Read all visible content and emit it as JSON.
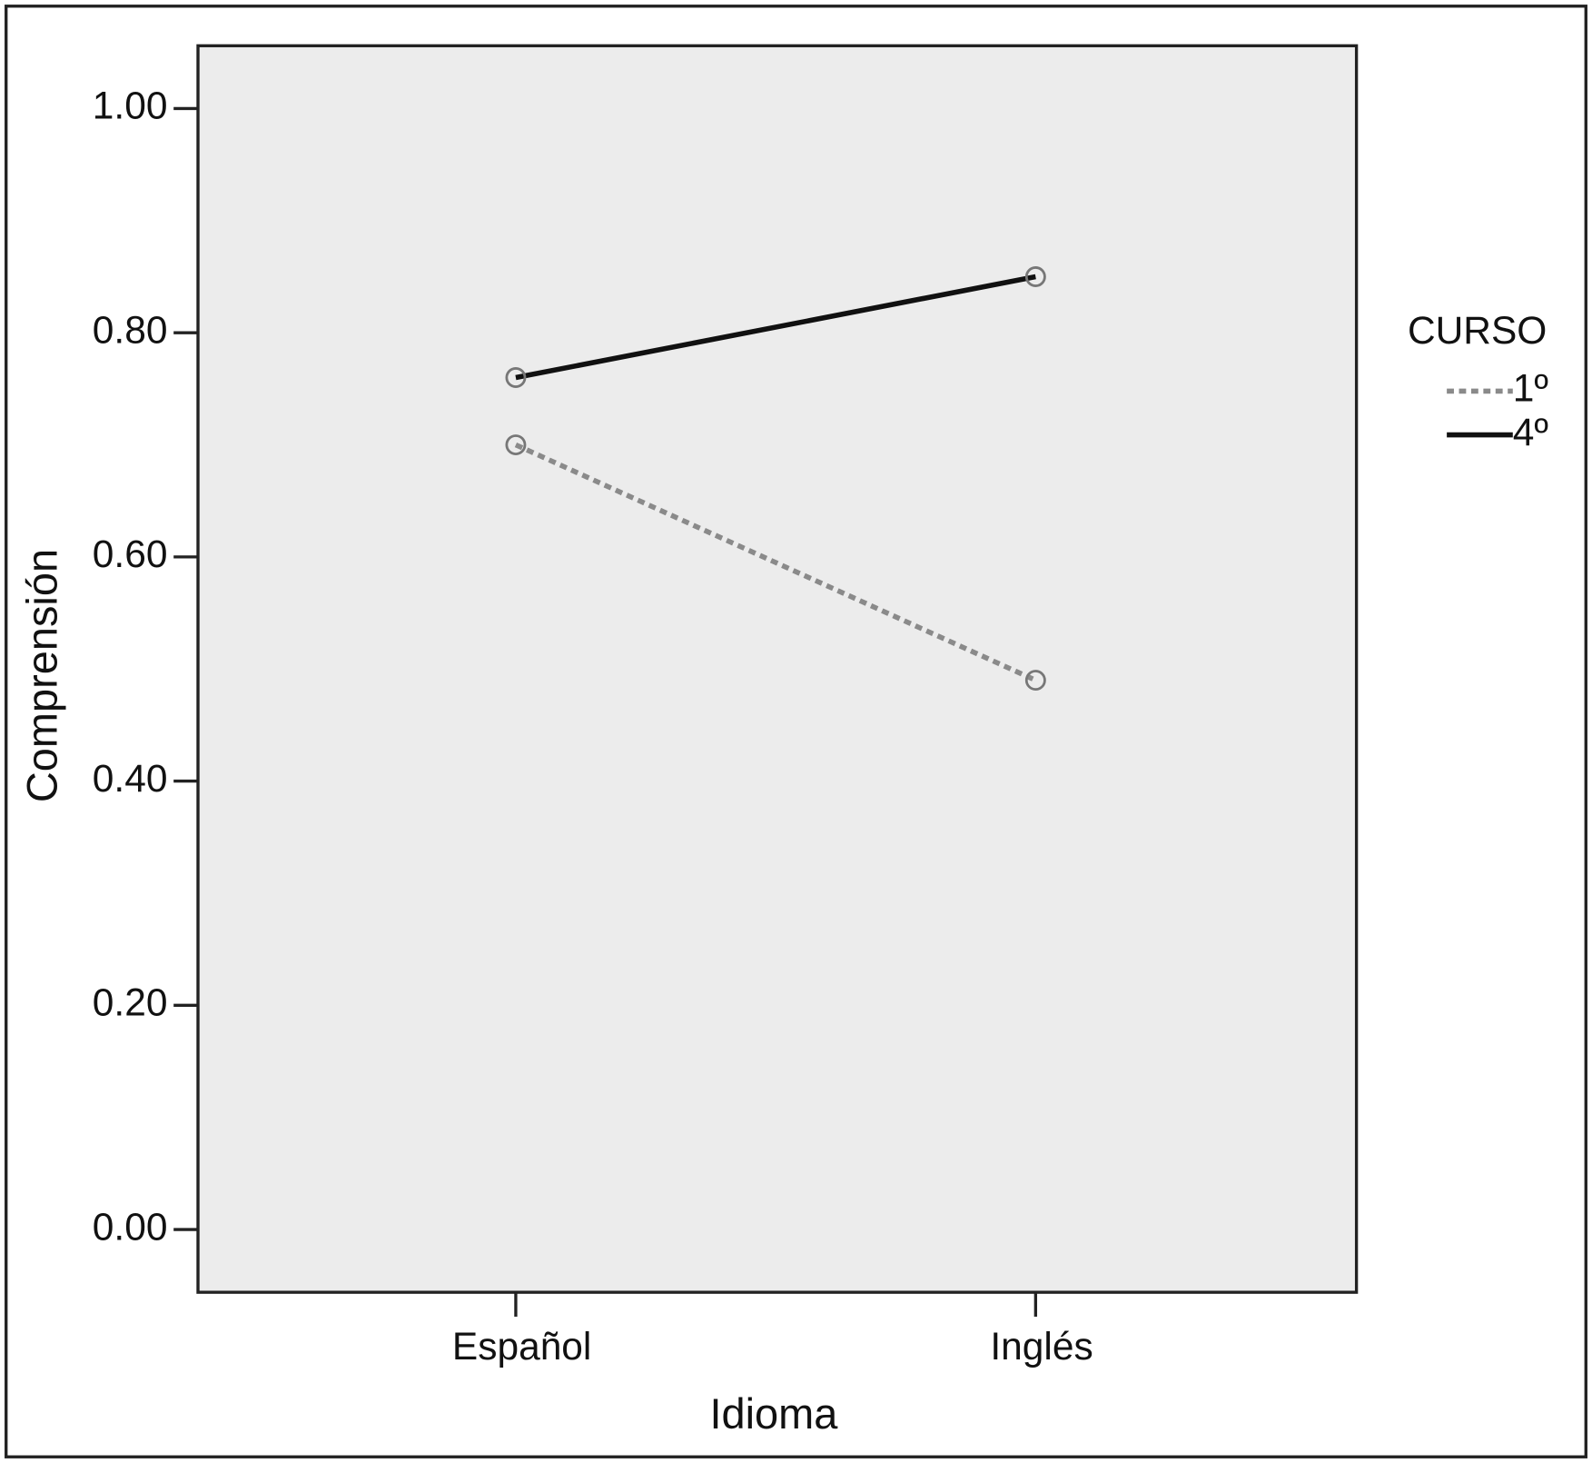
{
  "chart_data": {
    "type": "line",
    "x_label": "Idioma",
    "y_label": "Comprensión",
    "categories": [
      "Español",
      "Inglés"
    ],
    "legend_title": "CURSO",
    "legend": "right",
    "series": [
      {
        "name": "1º",
        "color": "#8a8a8a",
        "linestyle": "dotted",
        "values": [
          0.7,
          0.49
        ]
      },
      {
        "name": "4º",
        "color": "#111111",
        "linestyle": "solid",
        "values": [
          0.76,
          0.85
        ]
      }
    ],
    "ylim": [
      -0.056,
      1.056
    ],
    "yticks": [
      {
        "value": 0,
        "label": "0.00"
      },
      {
        "value": 0.2,
        "label": "0.20"
      },
      {
        "value": 0.4,
        "label": "0.40"
      },
      {
        "value": 0.6,
        "label": "0.60"
      },
      {
        "value": 0.8,
        "label": "0.80"
      },
      {
        "value": 1,
        "label": "1.00"
      }
    ],
    "grid": false
  }
}
